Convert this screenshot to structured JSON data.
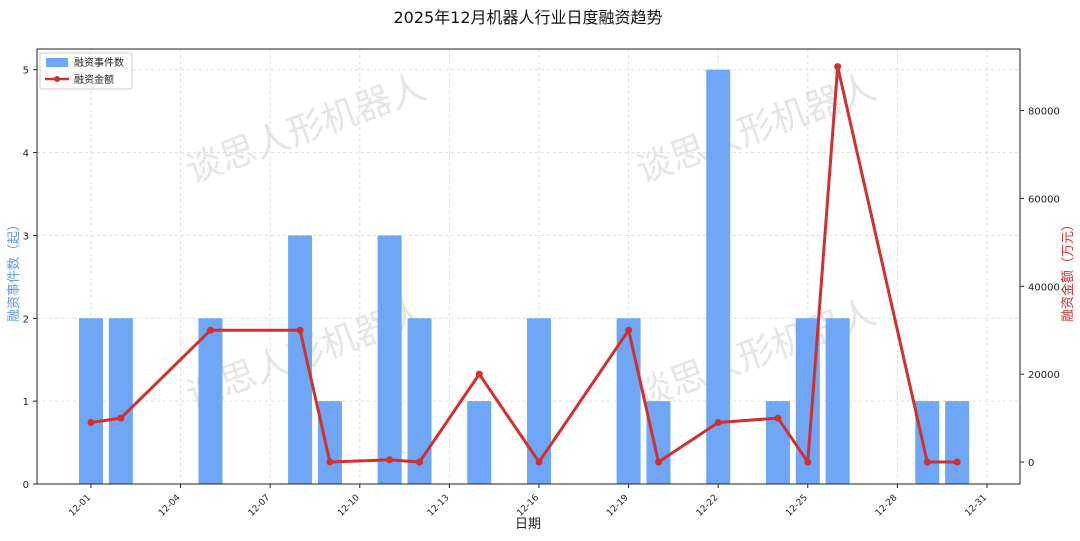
{
  "chart_data": {
    "type": "bar",
    "title": "2025年12月机器人行业日度融资趋势",
    "xlabel": "日期",
    "ylabel_left": "融资事件数（起）",
    "ylabel_right": "融资金额（万元）",
    "watermark": "谈思人形机器人",
    "x_tick_labels": [
      "12-01",
      "12-04",
      "12-07",
      "12-10",
      "12-13",
      "12-16",
      "12-19",
      "12-22",
      "12-25",
      "12-28",
      "12-31"
    ],
    "y_left_ticks": [
      0,
      1,
      2,
      3,
      4,
      5
    ],
    "y_right_ticks": [
      0,
      20000,
      40000,
      60000,
      80000
    ],
    "ylim_left": [
      0,
      5.25
    ],
    "ylim_right": [
      -5000,
      94000
    ],
    "grid": true,
    "legend_position": "top-left",
    "colors": {
      "bar": "#6fa6f5",
      "line": "#d03030",
      "left_axis_label": "#5b9bef",
      "right_axis_label": "#d03030"
    },
    "series": [
      {
        "name": "融资事件数",
        "type": "bar",
        "axis": "left",
        "x": [
          "12-01",
          "12-02",
          "12-05",
          "12-08",
          "12-09",
          "12-11",
          "12-12",
          "12-14",
          "12-16",
          "12-19",
          "12-20",
          "12-22",
          "12-24",
          "12-25",
          "12-26",
          "12-29",
          "12-30"
        ],
        "values": [
          2,
          2,
          2,
          3,
          1,
          3,
          2,
          1,
          2,
          2,
          1,
          5,
          1,
          2,
          2,
          1,
          1
        ]
      },
      {
        "name": "融资金额",
        "type": "line",
        "axis": "right",
        "x": [
          "12-01",
          "12-02",
          "12-05",
          "12-08",
          "12-09",
          "12-11",
          "12-12",
          "12-14",
          "12-16",
          "12-19",
          "12-20",
          "12-22",
          "12-24",
          "12-25",
          "12-26",
          "12-29",
          "12-30"
        ],
        "values": [
          9000,
          10000,
          30000,
          30000,
          0,
          500,
          0,
          20000,
          0,
          30000,
          0,
          9000,
          10000,
          0,
          90000,
          0,
          0
        ]
      }
    ]
  }
}
